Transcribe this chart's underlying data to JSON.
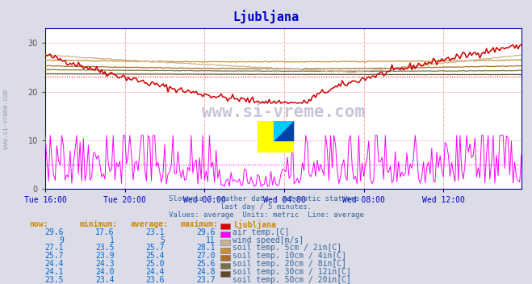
{
  "title": "Ljubljana",
  "bg_color": "#dcdce8",
  "plot_bg_color": "#ffffff",
  "title_color": "#0000cc",
  "x_label_color": "#0000cc",
  "subtitle_lines": [
    "Slovenia / weather data - automatic stations.",
    "last day / 5 minutes.",
    "Values: average  Units: metric  Line: average"
  ],
  "x_ticks_labels": [
    "Tue 16:00",
    "Tue 20:00",
    "Wed 00:00",
    "Wed 04:00",
    "Wed 08:00",
    "Wed 12:00"
  ],
  "x_ticks_pos": [
    0,
    48,
    96,
    144,
    192,
    240
  ],
  "y_ticks": [
    0,
    10,
    20,
    30
  ],
  "ylim": [
    0,
    33
  ],
  "xlim": [
    0,
    287
  ],
  "n_points": 288,
  "series_colors": {
    "air_temp": "#cc0000",
    "wind_speed": "#ff00ff",
    "soil_5cm": "#c8b090",
    "soil_10cm": "#c89030",
    "soil_20cm": "#a87020",
    "soil_30cm": "#787048",
    "soil_50cm": "#604828"
  },
  "avg_colors": {
    "air_temp": "#ff0000",
    "wind_speed": "#ff00ff"
  },
  "table_header_color": "#cc8800",
  "table_value_color": "#0066cc",
  "table_label_color": "#336699",
  "watermark_text_color": "#9999bb",
  "left_watermark_color": "#8888aa",
  "grid_v_color": "#ffaaaa",
  "grid_h_color": "#ffcccc",
  "spine_color": "#0000aa",
  "rows": [
    {
      "now": "29.6",
      "min": "17.6",
      "avg": "23.1",
      "max": "29.6",
      "swatch": "#dd0000",
      "label": "air temp.[C]"
    },
    {
      "now": "9",
      "min": "1",
      "avg": "5",
      "max": "11",
      "swatch": "#ff00ff",
      "label": "wind speed[m/s]"
    },
    {
      "now": "27.1",
      "min": "23.5",
      "avg": "25.7",
      "max": "28.1",
      "swatch": "#c8b090",
      "label": "soil temp. 5cm / 2in[C]"
    },
    {
      "now": "25.7",
      "min": "23.9",
      "avg": "25.4",
      "max": "27.0",
      "swatch": "#c89030",
      "label": "soil temp. 10cm / 4in[C]"
    },
    {
      "now": "24.4",
      "min": "24.3",
      "avg": "25.0",
      "max": "25.6",
      "swatch": "#a87020",
      "label": "soil temp. 20cm / 8in[C]"
    },
    {
      "now": "24.1",
      "min": "24.0",
      "avg": "24.4",
      "max": "24.8",
      "swatch": "#787048",
      "label": "soil temp. 30cm / 12in[C]"
    },
    {
      "now": "23.5",
      "min": "23.4",
      "avg": "23.6",
      "max": "23.7",
      "swatch": "#604828",
      "label": "soil temp. 50cm / 20in[C]"
    }
  ]
}
